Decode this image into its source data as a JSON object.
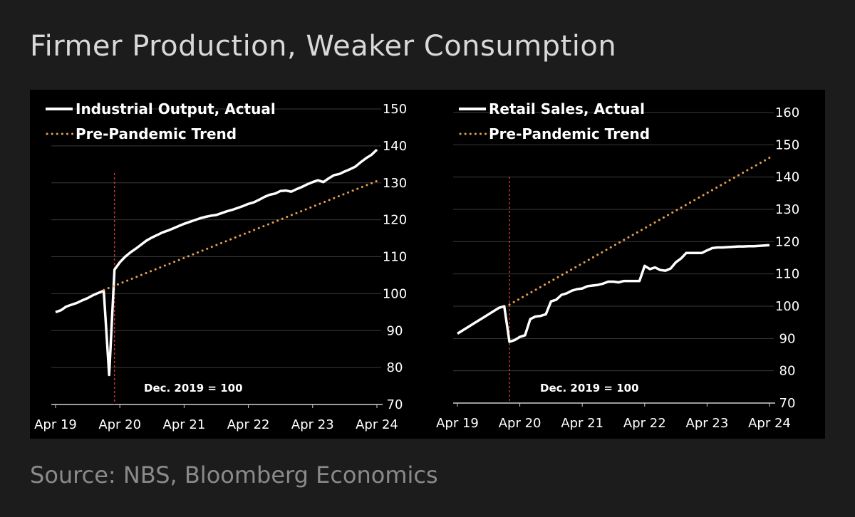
{
  "title": "Firmer Production, Weaker Consumption",
  "source": "Source: NBS, Bloomberg Economics",
  "colors": {
    "background": "#1c1c1c",
    "panel": "#000000",
    "actual": "#ffffff",
    "trend": "#e8a050",
    "marker": "#c0392b",
    "grid": "#3a3a3a"
  },
  "chart_data": [
    {
      "type": "line",
      "x_ticks": [
        "Apr 19",
        "Apr 20",
        "Apr 21",
        "Apr 22",
        "Apr 23",
        "Apr 24"
      ],
      "y_ticks": [
        70,
        80,
        90,
        100,
        110,
        120,
        130,
        140,
        150
      ],
      "ylim": [
        70,
        150
      ],
      "xlim": [
        "2019-04",
        "2024-04"
      ],
      "grid": true,
      "y_axis_side": "right",
      "legend_position": "top-left",
      "vertical_marker": "2020-03",
      "annotation": "Dec. 2019 = 100",
      "series": [
        {
          "name": "Industrial Output, Actual",
          "style": "solid",
          "x": [
            "2019-04",
            "2019-05",
            "2019-06",
            "2019-07",
            "2019-08",
            "2019-09",
            "2019-10",
            "2019-11",
            "2019-12",
            "2020-01",
            "2020-02",
            "2020-03",
            "2020-04",
            "2020-05",
            "2020-06",
            "2020-07",
            "2020-08",
            "2020-09",
            "2020-10",
            "2020-11",
            "2020-12",
            "2021-01",
            "2021-02",
            "2021-03",
            "2021-04",
            "2021-05",
            "2021-06",
            "2021-07",
            "2021-08",
            "2021-09",
            "2021-10",
            "2021-11",
            "2021-12",
            "2022-01",
            "2022-02",
            "2022-03",
            "2022-04",
            "2022-05",
            "2022-06",
            "2022-07",
            "2022-08",
            "2022-09",
            "2022-10",
            "2022-11",
            "2022-12",
            "2023-01",
            "2023-02",
            "2023-03",
            "2023-04",
            "2023-05",
            "2023-06",
            "2023-07",
            "2023-08",
            "2023-09",
            "2023-10",
            "2023-11",
            "2023-12",
            "2024-01",
            "2024-02",
            "2024-03",
            "2024-04"
          ],
          "values": [
            95,
            95.5,
            96.5,
            97,
            97.5,
            98.2,
            98.8,
            99.6,
            100.2,
            100.8,
            78,
            106.5,
            108.5,
            110,
            111.2,
            112.2,
            113.3,
            114.4,
            115.2,
            115.9,
            116.6,
            117.1,
            117.7,
            118.3,
            118.9,
            119.4,
            119.9,
            120.4,
            120.8,
            121.1,
            121.3,
            121.8,
            122.3,
            122.7,
            123.2,
            123.7,
            124.3,
            124.7,
            125.4,
            126.2,
            126.8,
            127.1,
            127.8,
            127.9,
            127.6,
            128.3,
            128.9,
            129.6,
            130.2,
            130.7,
            130.2,
            131.2,
            132.1,
            132.4,
            133.1,
            133.7,
            134.4,
            135.6,
            136.7,
            137.6,
            139
          ]
        },
        {
          "name": "Pre-Pandemic Trend",
          "style": "dotted",
          "x": [
            "2020-01",
            "2024-04"
          ],
          "values": [
            101,
            130.5
          ]
        }
      ]
    },
    {
      "type": "line",
      "x_ticks": [
        "Apr 19",
        "Apr 20",
        "Apr 21",
        "Apr 22",
        "Apr 23",
        "Apr 24"
      ],
      "y_ticks": [
        70,
        80,
        90,
        100,
        110,
        120,
        130,
        140,
        150,
        160
      ],
      "ylim": [
        70,
        160
      ],
      "xlim": [
        "2019-04",
        "2024-04"
      ],
      "grid": true,
      "y_axis_side": "right",
      "legend_position": "top-left",
      "vertical_marker": "2020-02",
      "annotation": "Dec. 2019 = 100",
      "series": [
        {
          "name": "Retail Sales, Actual",
          "style": "solid",
          "x": [
            "2019-04",
            "2019-05",
            "2019-06",
            "2019-07",
            "2019-08",
            "2019-09",
            "2019-10",
            "2019-11",
            "2019-12",
            "2020-01",
            "2020-02",
            "2020-03",
            "2020-04",
            "2020-05",
            "2020-06",
            "2020-07",
            "2020-08",
            "2020-09",
            "2020-10",
            "2020-11",
            "2020-12",
            "2021-01",
            "2021-02",
            "2021-03",
            "2021-04",
            "2021-05",
            "2021-06",
            "2021-07",
            "2021-08",
            "2021-09",
            "2021-10",
            "2021-11",
            "2021-12",
            "2022-01",
            "2022-02",
            "2022-03",
            "2022-04",
            "2022-05",
            "2022-06",
            "2022-07",
            "2022-08",
            "2022-09",
            "2022-10",
            "2022-11",
            "2022-12",
            "2023-01",
            "2023-02",
            "2023-03",
            "2023-04",
            "2023-05",
            "2023-06",
            "2023-07",
            "2023-08",
            "2023-09",
            "2023-10",
            "2023-11",
            "2023-12",
            "2024-01",
            "2024-02",
            "2024-03",
            "2024-04"
          ],
          "values": [
            91.5,
            92.5,
            93.5,
            94.5,
            95.5,
            96.5,
            97.5,
            98.5,
            99.5,
            100,
            89,
            89.5,
            90.5,
            91,
            96,
            96.8,
            97,
            97.5,
            101.5,
            102,
            103.5,
            104,
            104.8,
            105.3,
            105.5,
            106.2,
            106.4,
            106.6,
            107,
            107.6,
            107.6,
            107.4,
            107.8,
            107.8,
            107.8,
            107.8,
            112.5,
            111.5,
            112,
            111.2,
            111,
            111.7,
            113.6,
            114.8,
            116.5,
            116.5,
            116.5,
            116.5,
            117.3,
            118,
            118.2,
            118.2,
            118.3,
            118.4,
            118.5,
            118.5,
            118.6,
            118.6,
            118.7,
            118.8,
            118.9
          ]
        },
        {
          "name": "Pre-Pandemic Trend",
          "style": "dotted",
          "x": [
            "2020-02",
            "2024-04"
          ],
          "values": [
            100.5,
            146
          ]
        }
      ]
    }
  ]
}
